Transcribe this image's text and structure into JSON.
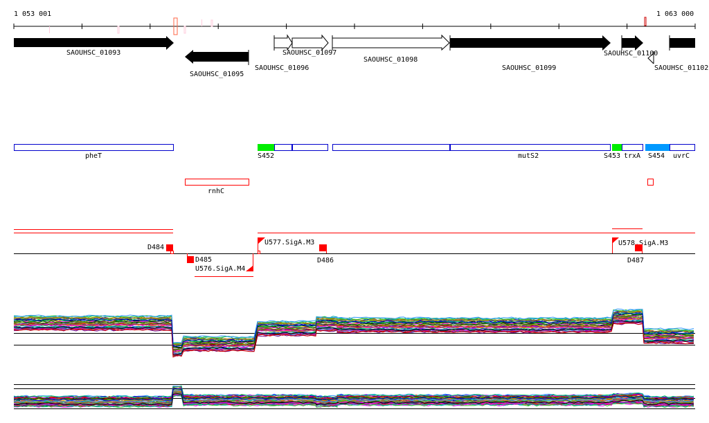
{
  "ruler": {
    "start_label": "1 053 001",
    "end_label": "1 063 000"
  },
  "genes": [
    {
      "name": "SAOUHSC_01093",
      "strand": "+",
      "style": "filled"
    },
    {
      "name": "SAOUHSC_01095",
      "strand": "-",
      "style": "filled"
    },
    {
      "name": "SAOUHSC_01096",
      "strand": "+",
      "style": "open"
    },
    {
      "name": "SAOUHSC_01097",
      "strand": "+",
      "style": "open"
    },
    {
      "name": "SAOUHSC_01098",
      "strand": "+",
      "style": "open"
    },
    {
      "name": "SAOUHSC_01099",
      "strand": "+",
      "style": "filled"
    },
    {
      "name": "SAOUHSC_01100",
      "strand": "+",
      "style": "filled"
    },
    {
      "name": "SAOUHSC_01102",
      "strand": "+",
      "style": "filled"
    }
  ],
  "operons": {
    "pheT": "pheT",
    "S452": "S452",
    "mutS2": "mutS2",
    "S453": "S453",
    "trxA": "trxA",
    "S454": "S454",
    "uvrC": "uvrC",
    "rnhC": "rnhC"
  },
  "features": {
    "D484": "D484",
    "D485": "D485",
    "U576": "U576.SigA.M4",
    "U577": "U577.SigA.M3",
    "D486": "D486",
    "U578": "U578.SigA.M3",
    "D487": "D487"
  },
  "colors": {
    "accent_red": "#ff0000",
    "operon_blue": "#0000cc",
    "sig_green": "#00ee00",
    "sig_blue": "#0099ff"
  },
  "expression": {
    "track1_levels": [
      467,
      505,
      497,
      475,
      468,
      470,
      458,
      486
    ],
    "track2_levels": [
      580,
      565,
      578,
      578,
      580,
      578,
      576,
      580
    ]
  }
}
